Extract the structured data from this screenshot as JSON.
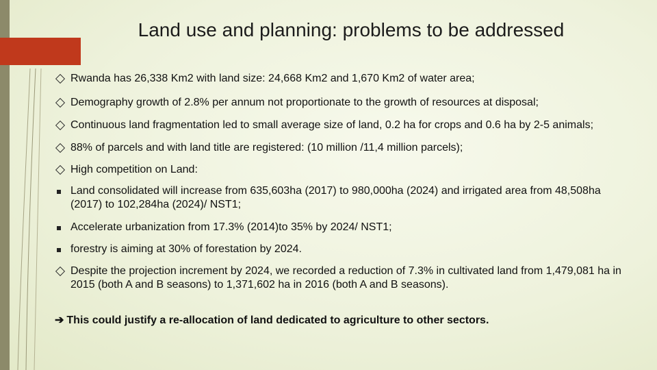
{
  "slide": {
    "title": "Land use and planning: problems to be addressed",
    "bullets": [
      {
        "marker": "diamond-icon",
        "text": "Rwanda has 26,338 Km2 with land size: 24,668 Km2 and 1,670 Km2 of water area;"
      },
      {
        "marker": "diamond-icon",
        "text": "Demography growth of 2.8% per annum not proportionate to the growth of resources at disposal;"
      },
      {
        "marker": "diamond-icon",
        "text": "Continuous land fragmentation led to small average size of land, 0.2 ha for crops and 0.6 ha by 2-5 animals;"
      },
      {
        "marker": "diamond-icon",
        "text": "88% of parcels and with land title are registered: (10 million /11,4 million parcels);"
      },
      {
        "marker": "diamond-icon",
        "text": "High competition on Land:"
      },
      {
        "marker": "square-icon",
        "text": "Land consolidated will increase from 635,603ha (2017) to 980,000ha (2024) and irrigated area from 48,508ha (2017) to 102,284ha (2024)/ NST1;"
      },
      {
        "marker": "square-icon",
        "text": "Accelerate urbanization from 17.3% (2014)to 35% by 2024/ NST1;"
      },
      {
        "marker": "square-icon",
        "text": "forestry is aiming at 30% of forestation by 2024."
      },
      {
        "marker": "diamond-icon",
        "text": "Despite the projection increment by 2024, we recorded a reduction of 7.3% in cultivated land from 1,479,081 ha in 2015 (both A and B seasons) to 1,371,602 ha in 2016 (both A and B seasons)."
      }
    ],
    "conclusion": {
      "arrow": "➔",
      "text": "This could justify a re-allocation of land dedicated to agriculture to other sectors."
    },
    "colors": {
      "accent": "#c0391c",
      "band": "#8c8a6a",
      "background": "#eef2dc"
    }
  }
}
